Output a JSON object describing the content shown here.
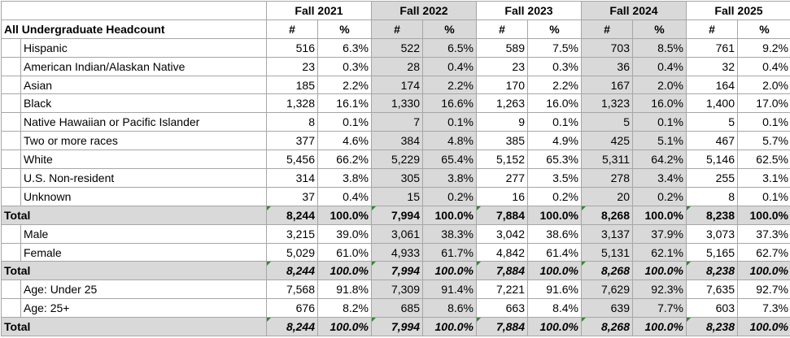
{
  "table": {
    "title": "All Undergraduate Headcount",
    "years": [
      "Fall 2021",
      "Fall 2022",
      "Fall 2023",
      "Fall 2024",
      "Fall 2025"
    ],
    "count_header": "#",
    "pct_header": "%",
    "sections": [
      {
        "rows": [
          {
            "label": "Hispanic",
            "values": [
              "516",
              "6.3%",
              "522",
              "6.5%",
              "589",
              "7.5%",
              "703",
              "8.5%",
              "761",
              "9.2%"
            ]
          },
          {
            "label": "American Indian/Alaskan Native",
            "values": [
              "23",
              "0.3%",
              "28",
              "0.4%",
              "23",
              "0.3%",
              "36",
              "0.4%",
              "32",
              "0.4%"
            ]
          },
          {
            "label": "Asian",
            "values": [
              "185",
              "2.2%",
              "174",
              "2.2%",
              "170",
              "2.2%",
              "167",
              "2.0%",
              "164",
              "2.0%"
            ]
          },
          {
            "label": "Black",
            "values": [
              "1,328",
              "16.1%",
              "1,330",
              "16.6%",
              "1,263",
              "16.0%",
              "1,323",
              "16.0%",
              "1,400",
              "17.0%"
            ]
          },
          {
            "label": "Native Hawaiian or Pacific Islander",
            "values": [
              "8",
              "0.1%",
              "7",
              "0.1%",
              "9",
              "0.1%",
              "5",
              "0.1%",
              "5",
              "0.1%"
            ]
          },
          {
            "label": "Two or more races",
            "values": [
              "377",
              "4.6%",
              "384",
              "4.8%",
              "385",
              "4.9%",
              "425",
              "5.1%",
              "467",
              "5.7%"
            ]
          },
          {
            "label": "White",
            "values": [
              "5,456",
              "66.2%",
              "5,229",
              "65.4%",
              "5,152",
              "65.3%",
              "5,311",
              "64.2%",
              "5,146",
              "62.5%"
            ]
          },
          {
            "label": "U.S. Non-resident",
            "values": [
              "314",
              "3.8%",
              "305",
              "3.8%",
              "277",
              "3.5%",
              "278",
              "3.4%",
              "255",
              "3.1%"
            ]
          },
          {
            "label": "Unknown",
            "values": [
              "37",
              "0.4%",
              "15",
              "0.2%",
              "16",
              "0.2%",
              "20",
              "0.2%",
              "8",
              "0.1%"
            ]
          }
        ],
        "total": {
          "label": "Total",
          "italic": false,
          "values": [
            "8,244",
            "100.0%",
            "7,994",
            "100.0%",
            "7,884",
            "100.0%",
            "8,268",
            "100.0%",
            "8,238",
            "100.0%"
          ]
        }
      },
      {
        "rows": [
          {
            "label": "Male",
            "values": [
              "3,215",
              "39.0%",
              "3,061",
              "38.3%",
              "3,042",
              "38.6%",
              "3,137",
              "37.9%",
              "3,073",
              "37.3%"
            ]
          },
          {
            "label": "Female",
            "values": [
              "5,029",
              "61.0%",
              "4,933",
              "61.7%",
              "4,842",
              "61.4%",
              "5,131",
              "62.1%",
              "5,165",
              "62.7%"
            ]
          }
        ],
        "total": {
          "label": "Total",
          "italic": true,
          "values": [
            "8,244",
            "100.0%",
            "7,994",
            "100.0%",
            "7,884",
            "100.0%",
            "8,268",
            "100.0%",
            "8,238",
            "100.0%"
          ]
        }
      },
      {
        "rows": [
          {
            "label": "Age: Under 25",
            "values": [
              "7,568",
              "91.8%",
              "7,309",
              "91.4%",
              "7,221",
              "91.6%",
              "7,629",
              "92.3%",
              "7,635",
              "92.7%"
            ]
          },
          {
            "label": "Age: 25+",
            "values": [
              "676",
              "8.2%",
              "685",
              "8.6%",
              "663",
              "8.4%",
              "639",
              "7.7%",
              "603",
              "7.3%"
            ]
          }
        ],
        "total": {
          "label": "Total",
          "italic": true,
          "values": [
            "8,244",
            "100.0%",
            "7,994",
            "100.0%",
            "7,884",
            "100.0%",
            "8,268",
            "100.0%",
            "8,238",
            "100.0%"
          ]
        }
      }
    ]
  }
}
